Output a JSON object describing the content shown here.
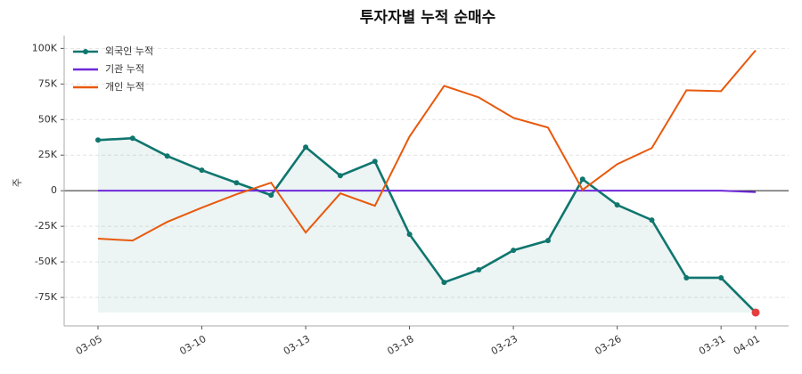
{
  "chart_data": {
    "type": "line",
    "title": "투자자별 누적 순매수",
    "y_label": "주",
    "categories": [
      "03-05",
      null,
      null,
      "03-10",
      null,
      null,
      "03-13",
      null,
      null,
      "03-18",
      null,
      null,
      "03-23",
      null,
      null,
      "03-26",
      null,
      null,
      "03-31",
      "04-01"
    ],
    "series": [
      {
        "name": "외국인 누적",
        "color": "#0f766e",
        "markers": true,
        "fill": true,
        "last_marker_color": "#e53e3e",
        "values": [
          35600,
          36900,
          24400,
          14400,
          5600,
          -3100,
          30600,
          10600,
          20600,
          -30600,
          -64400,
          -55600,
          -41900,
          -35000,
          8100,
          -10000,
          -20600,
          -61200,
          -61200,
          -85600
        ]
      },
      {
        "name": "기관 누적",
        "color": "#6d28d9",
        "markers": false,
        "fill": false,
        "values": [
          0,
          0,
          0,
          0,
          0,
          0,
          0,
          0,
          0,
          0,
          0,
          0,
          0,
          0,
          0,
          0,
          0,
          0,
          0,
          -1000
        ]
      },
      {
        "name": "개인 누적",
        "color": "#e8590c",
        "markers": false,
        "fill": false,
        "values": [
          -33700,
          -35000,
          -21900,
          -11900,
          -2500,
          5600,
          -29400,
          -1900,
          -10600,
          38100,
          73700,
          65600,
          51200,
          44400,
          600,
          18700,
          30000,
          70600,
          70000,
          98700
        ]
      }
    ],
    "ylim": [
      -95000,
      109000
    ],
    "yticks": [
      {
        "value": -75000,
        "label": "-75K"
      },
      {
        "value": -50000,
        "label": "-50K"
      },
      {
        "value": -25000,
        "label": "-25K"
      },
      0,
      {
        "value": 25000,
        "label": "25K"
      },
      {
        "value": 50000,
        "label": "50K"
      },
      {
        "value": 75000,
        "label": "75K"
      },
      {
        "value": 100000,
        "label": "100K"
      }
    ],
    "grid": true,
    "legend": "upper-left"
  }
}
